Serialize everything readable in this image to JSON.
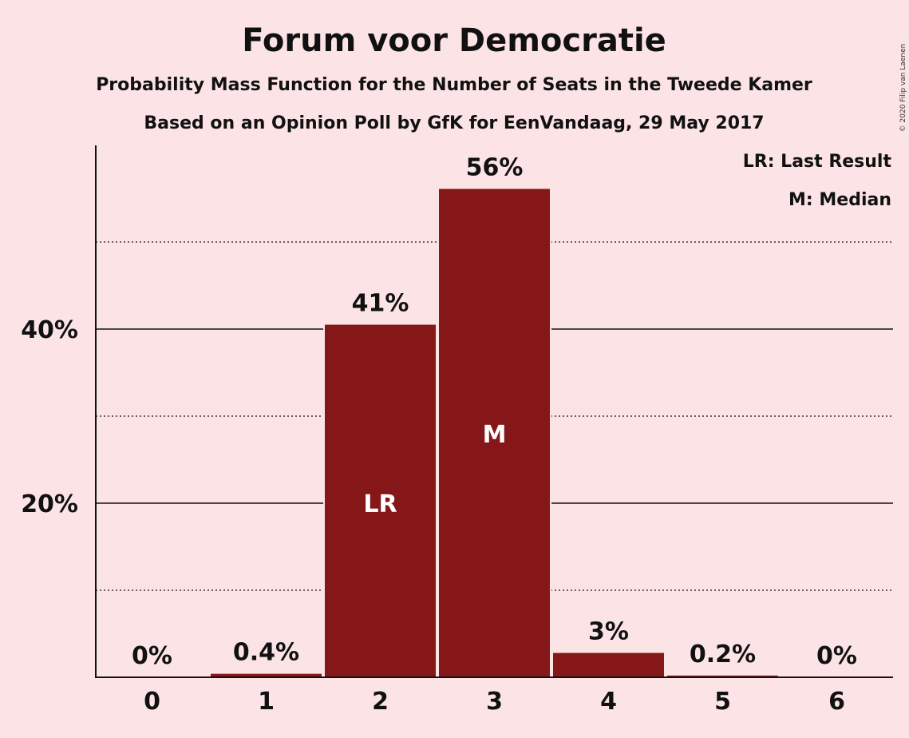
{
  "copyright": "© 2020 Filip van Laenen",
  "legend": {
    "last_result": "LR: Last Result",
    "median": "M: Median"
  },
  "colors": {
    "background": "#FCE4E6",
    "bar": "#851718",
    "text": "#111111",
    "in_bar_text": "#FFFFFF"
  },
  "chart_data": {
    "type": "bar",
    "title": "Forum voor Democratie",
    "subtitle": "Probability Mass Function for the Number of Seats in the Tweede Kamer",
    "subtitle2": "Based on an Opinion Poll by GfK for EenVandaag, 29 May 2017",
    "xlabel": "",
    "ylabel": "",
    "categories": [
      "0",
      "1",
      "2",
      "3",
      "4",
      "5",
      "6"
    ],
    "values": [
      0,
      0.4,
      40.5,
      56.1,
      2.8,
      0.2,
      0
    ],
    "value_labels": [
      "0%",
      "0.4%",
      "41%",
      "56%",
      "3%",
      "0.2%",
      "0%"
    ],
    "in_bar_labels": [
      "",
      "",
      "LR",
      "M",
      "",
      "",
      ""
    ],
    "ylim": [
      0,
      61
    ],
    "yticks": [
      {
        "value": 20,
        "label": "20%"
      },
      {
        "value": 40,
        "label": "40%"
      }
    ],
    "minor_gridlines": [
      10,
      30,
      50
    ],
    "grid": true,
    "legend_position": "top-right"
  }
}
